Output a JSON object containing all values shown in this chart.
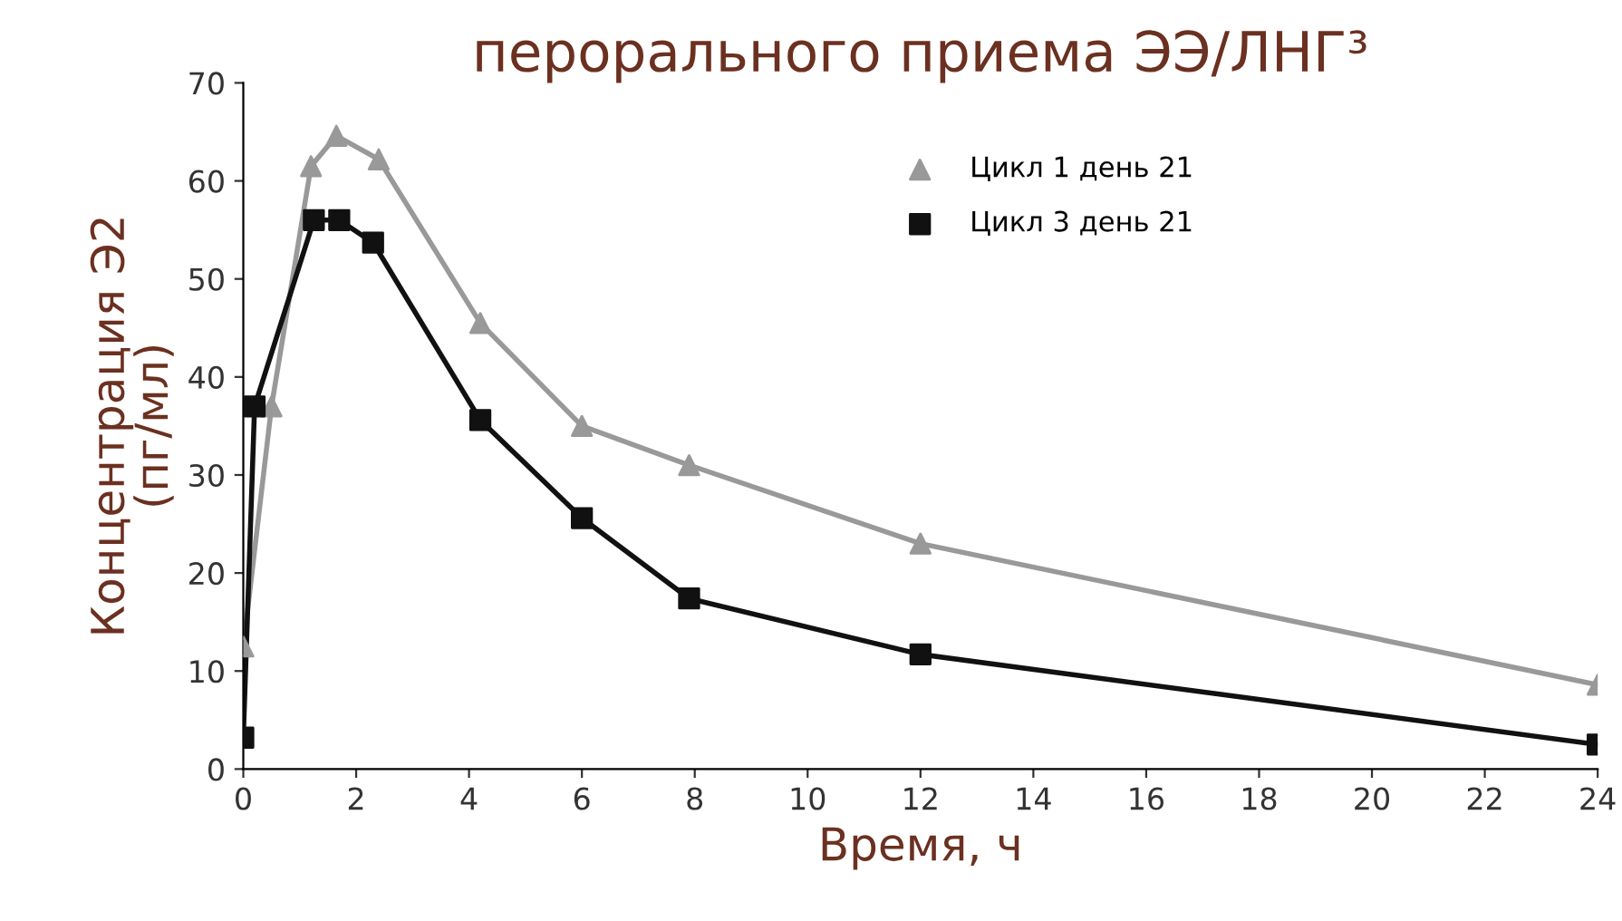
{
  "chart_data": {
    "type": "line",
    "title": "перорального приема ЭЭ/ЛНГ³",
    "xlabel": "Время, ч",
    "ylabel": "Концентрация Э2\n(пг/мл)",
    "xlim": [
      0,
      24
    ],
    "xticks": [
      0,
      2,
      4,
      6,
      8,
      10,
      12,
      14,
      16,
      18,
      20,
      22,
      24
    ],
    "ylim": [
      0,
      70
    ],
    "yticks": [
      0,
      10,
      20,
      30,
      40,
      50,
      60,
      70
    ],
    "grid": false,
    "legend": "top right",
    "line_style": "solid",
    "series": [
      {
        "name": "Цикл 1 день 21",
        "color": "#999999",
        "marker": "triangle",
        "x": [
          0,
          0.5,
          1.2,
          1.65,
          2.4,
          4.2,
          6,
          7.9,
          12,
          24
        ],
        "values": [
          12.5,
          37,
          61.5,
          64.6,
          62.2,
          45.5,
          35,
          31,
          23,
          8.6
        ]
      },
      {
        "name": "Цикл 3 день 21",
        "color": "#111111",
        "marker": "square",
        "x": [
          0,
          0.2,
          1.25,
          1.7,
          2.3,
          4.2,
          6,
          7.9,
          12,
          24
        ],
        "values": [
          3.2,
          37,
          56,
          56,
          53.7,
          35.6,
          25.6,
          17.4,
          11.7,
          2.5
        ]
      }
    ]
  }
}
